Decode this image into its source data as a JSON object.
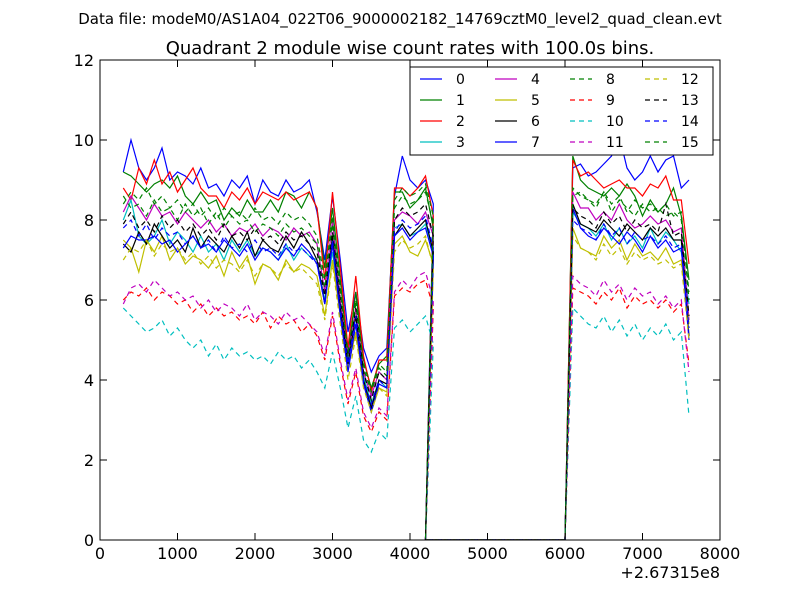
{
  "chart_data": {
    "type": "line",
    "suptitle": "Data file: modeM0/AS1A04_022T06_9000002182_14769cztM0_level2_quad_clean.evt",
    "title": "Quadrant 2 module wise count rates with 100.0s bins.",
    "xlabel": "",
    "ylabel": "",
    "xlim": [
      0,
      8000
    ],
    "ylim": [
      0,
      12
    ],
    "x_offset_label": "+2.67315e8",
    "x_ticks": [
      "0",
      "1000",
      "2000",
      "3000",
      "4000",
      "5000",
      "6000",
      "7000",
      "8000"
    ],
    "y_ticks": [
      "0",
      "2",
      "4",
      "6",
      "8",
      "10",
      "12"
    ],
    "legend_position": "top-right",
    "grid": false,
    "segments": [
      [
        300,
        4100
      ],
      [
        4200,
        6000
      ],
      [
        6100,
        7600
      ]
    ],
    "series": [
      {
        "name": "0",
        "color": "#0000ff",
        "style": "solid",
        "seg1": [
          9.2,
          10.0,
          9.3,
          9.0,
          9.3,
          9.8,
          9.0,
          9.2,
          9.1,
          8.9,
          9.3,
          8.8,
          8.9,
          8.6,
          9.0,
          8.8,
          9.1,
          8.4,
          9.0,
          8.7,
          8.6,
          9.0,
          8.7,
          8.8,
          9.0,
          8.2,
          7.0,
          8.6,
          7.0,
          5.2,
          6.2,
          4.8,
          4.2,
          4.6,
          4.8,
          8.6,
          9.6,
          9.0,
          8.8,
          9.0,
          8.4
        ],
        "seg3": [
          9.3,
          9.4,
          9.1,
          9.2,
          9.4,
          9.6,
          10.1,
          9.3,
          9.0,
          9.2,
          9.6,
          9.2,
          9.5,
          9.6,
          8.8,
          9.0
        ]
      },
      {
        "name": "1",
        "color": "#008000",
        "style": "solid",
        "seg1": [
          9.2,
          9.1,
          8.9,
          8.7,
          8.9,
          9.0,
          8.8,
          9.1,
          8.6,
          8.4,
          8.7,
          8.4,
          8.5,
          8.0,
          8.3,
          8.1,
          8.5,
          8.2,
          8.2,
          8.5,
          8.2,
          8.7,
          8.6,
          8.3,
          8.7,
          8.3,
          6.8,
          8.3,
          6.5,
          4.6,
          6.2,
          4.5,
          3.8,
          4.4,
          4.6,
          8.7,
          8.7,
          8.3,
          8.5,
          8.8,
          7.8
        ],
        "seg3": [
          9.6,
          9.0,
          8.8,
          8.7,
          8.6,
          8.8,
          8.6,
          8.9,
          8.6,
          8.1,
          8.5,
          8.2,
          8.4,
          8.8,
          8.1,
          6.5
        ]
      },
      {
        "name": "2",
        "color": "#ff0000",
        "style": "solid",
        "seg1": [
          8.8,
          8.5,
          9.3,
          8.9,
          9.5,
          8.9,
          9.2,
          8.7,
          9.0,
          9.3,
          8.8,
          8.6,
          8.6,
          8.3,
          8.7,
          8.5,
          8.8,
          8.4,
          8.7,
          8.6,
          8.5,
          8.7,
          8.5,
          8.6,
          8.7,
          8.3,
          6.5,
          8.7,
          6.8,
          4.8,
          6.6,
          4.6,
          3.7,
          4.5,
          4.5,
          8.8,
          8.8,
          8.6,
          8.8,
          9.1,
          8.1
        ],
        "seg3": [
          9.5,
          9.1,
          9.2,
          9.0,
          8.8,
          8.9,
          9.0,
          8.8,
          8.8,
          8.6,
          8.9,
          8.8,
          9.1,
          8.5,
          8.5,
          6.9
        ]
      },
      {
        "name": "3",
        "color": "#00bfbf",
        "style": "solid",
        "seg1": [
          8.0,
          8.5,
          7.6,
          7.4,
          7.6,
          8.0,
          7.4,
          7.7,
          7.5,
          7.2,
          7.6,
          7.2,
          7.4,
          7.0,
          7.5,
          7.2,
          7.5,
          7.1,
          7.3,
          7.2,
          7.0,
          7.4,
          7.0,
          7.3,
          7.1,
          7.0,
          6.0,
          7.2,
          5.8,
          4.5,
          5.6,
          4.1,
          3.4,
          4.0,
          3.8,
          7.8,
          7.9,
          7.6,
          7.7,
          7.9,
          7.2
        ],
        "seg3": [
          8.2,
          7.9,
          7.8,
          7.6,
          7.9,
          7.5,
          7.8,
          7.4,
          7.6,
          7.3,
          7.8,
          7.4,
          7.7,
          7.5,
          7.2,
          5.9
        ]
      },
      {
        "name": "4",
        "color": "#bf00bf",
        "style": "solid",
        "seg1": [
          8.2,
          8.6,
          8.3,
          8.0,
          8.4,
          8.1,
          8.2,
          7.9,
          8.2,
          8.0,
          7.8,
          8.0,
          7.7,
          7.9,
          7.6,
          7.8,
          7.7,
          7.9,
          7.6,
          7.8,
          7.7,
          7.5,
          7.8,
          7.6,
          7.7,
          7.4,
          6.2,
          8.0,
          6.0,
          4.6,
          5.8,
          4.2,
          3.6,
          4.2,
          4.0,
          8.0,
          8.2,
          8.1,
          7.9,
          8.2,
          7.6
        ],
        "seg3": [
          8.7,
          8.3,
          8.3,
          8.0,
          8.2,
          8.0,
          8.4,
          8.0,
          7.8,
          7.9,
          8.1,
          7.9,
          8.0,
          7.7,
          7.8,
          5.5
        ]
      },
      {
        "name": "5",
        "color": "#bfbf00",
        "style": "solid",
        "seg1": [
          7.5,
          7.3,
          6.7,
          7.5,
          7.2,
          7.6,
          7.0,
          7.3,
          6.9,
          7.1,
          7.0,
          6.8,
          7.1,
          6.6,
          7.2,
          6.8,
          7.1,
          6.4,
          6.9,
          6.8,
          6.5,
          7.0,
          6.7,
          6.9,
          6.8,
          6.6,
          5.6,
          7.0,
          5.6,
          4.3,
          5.2,
          3.9,
          3.2,
          3.8,
          3.7,
          7.4,
          7.6,
          7.2,
          7.1,
          7.5,
          6.9
        ],
        "seg3": [
          7.8,
          7.3,
          7.2,
          7.1,
          7.6,
          7.3,
          7.5,
          7.0,
          7.4,
          7.1,
          7.2,
          7.0,
          7.3,
          6.9,
          7.0,
          5.4
        ]
      },
      {
        "name": "6",
        "color": "#000000",
        "style": "solid",
        "seg1": [
          7.4,
          7.2,
          7.7,
          7.4,
          7.9,
          7.6,
          7.3,
          7.5,
          7.2,
          7.8,
          7.3,
          7.6,
          7.4,
          7.2,
          7.6,
          7.3,
          7.7,
          7.1,
          7.5,
          7.3,
          7.2,
          7.6,
          7.3,
          7.7,
          7.4,
          7.0,
          5.9,
          7.6,
          5.8,
          4.4,
          5.6,
          4.0,
          3.3,
          4.0,
          3.9,
          7.6,
          7.9,
          7.6,
          7.8,
          8.0,
          7.2
        ],
        "seg3": [
          8.4,
          7.9,
          7.8,
          7.7,
          8.0,
          7.8,
          7.6,
          7.9,
          7.7,
          7.5,
          7.8,
          7.6,
          7.8,
          7.5,
          7.5,
          5.1
        ]
      },
      {
        "name": "7",
        "color": "#0000ff",
        "style": "solid",
        "seg1": [
          7.3,
          7.6,
          7.5,
          7.5,
          7.6,
          7.4,
          7.5,
          7.2,
          7.4,
          7.6,
          7.3,
          7.4,
          7.2,
          7.5,
          7.3,
          7.1,
          7.4,
          7.0,
          7.3,
          7.2,
          7.0,
          7.3,
          7.1,
          7.4,
          7.2,
          6.9,
          5.9,
          7.4,
          5.6,
          4.2,
          5.4,
          3.9,
          3.2,
          3.9,
          3.8,
          7.6,
          7.8,
          7.5,
          7.7,
          7.8,
          7.1
        ],
        "seg3": [
          8.3,
          7.8,
          7.6,
          7.5,
          7.8,
          7.6,
          7.4,
          7.7,
          7.5,
          7.2,
          7.6,
          7.3,
          7.5,
          7.2,
          7.3,
          5.0
        ]
      },
      {
        "name": "8",
        "color": "#008000",
        "style": "dashed",
        "seg1": [
          8.6,
          8.3,
          8.4,
          8.1,
          8.5,
          8.2,
          8.3,
          8.0,
          8.4,
          8.1,
          8.3,
          7.9,
          8.2,
          7.8,
          8.1,
          7.9,
          8.0,
          7.7,
          7.9,
          7.8,
          7.6,
          7.9,
          7.7,
          7.8,
          7.6,
          7.4,
          6.3,
          7.9,
          6.2,
          4.6,
          5.9,
          4.3,
          3.7,
          4.3,
          4.1,
          8.3,
          8.6,
          8.4,
          8.5,
          8.7,
          7.9
        ],
        "seg3": [
          8.6,
          8.7,
          8.5,
          8.4,
          8.7,
          8.2,
          8.5,
          8.3,
          8.1,
          8.4,
          8.2,
          8.3,
          8.1,
          8.2,
          8.0,
          6.2
        ]
      },
      {
        "name": "9",
        "color": "#ff0000",
        "style": "dashed",
        "seg1": [
          6.0,
          6.2,
          6.1,
          6.3,
          6.0,
          6.2,
          6.1,
          5.9,
          6.0,
          5.7,
          5.9,
          5.6,
          5.8,
          5.6,
          5.7,
          5.5,
          5.6,
          5.4,
          5.7,
          5.3,
          5.6,
          5.4,
          5.5,
          5.2,
          5.4,
          5.1,
          4.5,
          5.6,
          4.4,
          3.4,
          4.2,
          3.1,
          2.7,
          3.2,
          3.0,
          6.1,
          6.3,
          6.2,
          6.4,
          6.5,
          5.8
        ],
        "seg3": [
          6.3,
          6.2,
          6.1,
          5.9,
          6.2,
          6.0,
          6.3,
          5.8,
          6.1,
          5.9,
          6.0,
          5.8,
          6.0,
          5.7,
          5.9,
          4.4
        ]
      },
      {
        "name": "10",
        "color": "#00bfbf",
        "style": "dashed",
        "seg1": [
          5.8,
          5.6,
          5.4,
          5.2,
          5.3,
          5.5,
          5.1,
          5.3,
          5.0,
          4.8,
          5.0,
          4.6,
          4.9,
          4.5,
          4.8,
          4.6,
          4.7,
          4.5,
          4.6,
          4.4,
          4.7,
          4.5,
          4.6,
          4.3,
          4.5,
          4.2,
          3.8,
          4.7,
          3.8,
          2.8,
          3.6,
          2.5,
          2.2,
          2.7,
          2.5,
          5.3,
          5.5,
          5.2,
          5.4,
          5.6,
          4.9
        ],
        "seg3": [
          5.8,
          5.6,
          5.4,
          5.3,
          5.6,
          5.2,
          5.5,
          5.1,
          5.4,
          5.0,
          5.3,
          5.1,
          5.4,
          5.0,
          5.2,
          3.1
        ]
      },
      {
        "name": "11",
        "color": "#bf00bf",
        "style": "dashed",
        "seg1": [
          5.9,
          6.3,
          6.4,
          6.2,
          6.5,
          6.3,
          6.1,
          6.2,
          6.0,
          6.1,
          5.8,
          6.0,
          5.7,
          5.9,
          5.8,
          5.6,
          5.9,
          5.5,
          5.7,
          5.6,
          5.4,
          5.7,
          5.5,
          5.6,
          5.4,
          5.2,
          4.6,
          5.7,
          4.5,
          3.5,
          4.3,
          3.2,
          2.8,
          3.3,
          3.1,
          6.2,
          6.5,
          6.3,
          6.6,
          6.7,
          6.0
        ],
        "seg3": [
          6.6,
          6.4,
          6.3,
          6.1,
          6.5,
          6.2,
          6.4,
          6.0,
          6.3,
          6.1,
          6.2,
          5.9,
          6.1,
          5.8,
          6.0,
          4.2
        ]
      },
      {
        "name": "12",
        "color": "#bfbf00",
        "style": "dashed",
        "seg1": [
          7.0,
          7.3,
          7.2,
          7.5,
          7.1,
          7.4,
          7.2,
          7.3,
          7.0,
          7.2,
          6.9,
          7.1,
          6.8,
          7.0,
          6.9,
          6.7,
          7.0,
          6.6,
          6.9,
          6.8,
          6.6,
          6.9,
          6.7,
          6.8,
          6.6,
          6.4,
          5.5,
          6.9,
          5.4,
          4.0,
          5.1,
          3.8,
          3.2,
          3.8,
          3.6,
          7.2,
          7.5,
          7.3,
          7.4,
          7.6,
          6.8
        ],
        "seg3": [
          7.6,
          7.3,
          7.2,
          7.0,
          7.4,
          7.1,
          7.3,
          6.9,
          7.2,
          7.0,
          7.1,
          6.9,
          7.0,
          6.8,
          6.9,
          5.0
        ]
      },
      {
        "name": "13",
        "color": "#000000",
        "style": "dashed",
        "seg1": [
          7.9,
          8.2,
          7.8,
          8.0,
          7.7,
          8.1,
          7.8,
          8.0,
          7.7,
          7.9,
          7.6,
          7.8,
          7.5,
          7.9,
          7.6,
          7.7,
          7.5,
          7.8,
          7.5,
          7.6,
          7.4,
          7.7,
          7.5,
          7.6,
          7.4,
          7.2,
          6.1,
          7.7,
          6.0,
          4.5,
          5.8,
          4.2,
          3.5,
          4.2,
          4.0,
          8.0,
          8.3,
          8.1,
          8.2,
          8.4,
          7.6
        ],
        "seg3": [
          8.3,
          8.1,
          8.0,
          7.8,
          8.2,
          7.9,
          8.1,
          7.7,
          8.0,
          7.8,
          7.9,
          7.7,
          8.4,
          7.6,
          7.7,
          5.6
        ]
      },
      {
        "name": "14",
        "color": "#0000ff",
        "style": "dashed",
        "seg1": [
          7.8,
          8.0,
          7.6,
          7.9,
          7.5,
          7.8,
          7.6,
          7.7,
          7.4,
          7.6,
          7.3,
          7.5,
          7.2,
          7.6,
          7.3,
          7.4,
          7.2,
          7.5,
          7.2,
          7.3,
          7.1,
          7.4,
          7.2,
          7.3,
          7.1,
          6.9,
          5.9,
          7.5,
          5.8,
          4.4,
          5.6,
          4.0,
          3.4,
          4.0,
          3.8,
          7.7,
          8.0,
          7.8,
          7.9,
          8.1,
          7.3
        ],
        "seg3": [
          8.0,
          7.8,
          7.7,
          7.5,
          7.9,
          7.6,
          7.8,
          7.4,
          7.7,
          7.5,
          7.6,
          7.4,
          7.6,
          7.3,
          7.4,
          5.3
        ]
      },
      {
        "name": "15",
        "color": "#008000",
        "style": "dashed",
        "seg1": [
          8.4,
          8.7,
          8.5,
          8.8,
          8.4,
          8.6,
          8.3,
          8.5,
          8.2,
          8.4,
          8.1,
          8.3,
          8.0,
          8.3,
          8.1,
          8.2,
          8.0,
          8.3,
          8.0,
          8.1,
          7.9,
          8.2,
          8.0,
          8.1,
          7.9,
          7.6,
          6.5,
          8.1,
          6.3,
          4.7,
          6.0,
          4.4,
          3.8,
          4.4,
          4.2,
          8.5,
          8.8,
          8.6,
          8.7,
          8.9,
          8.1
        ],
        "seg3": [
          8.8,
          8.6,
          8.5,
          8.3,
          8.7,
          8.4,
          8.6,
          8.2,
          8.5,
          8.3,
          8.4,
          8.2,
          8.4,
          8.1,
          8.2,
          6.0
        ]
      }
    ]
  }
}
